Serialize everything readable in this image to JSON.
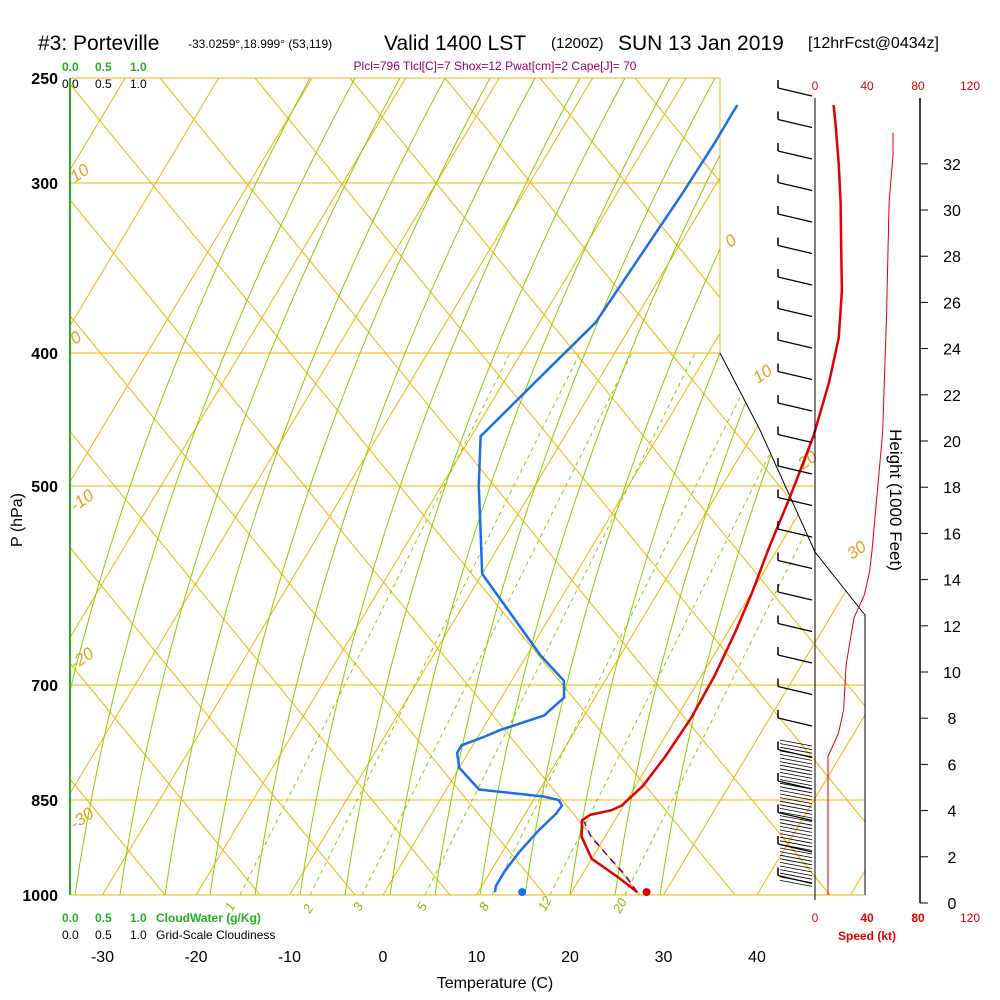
{
  "title": {
    "station": "#3: Porteville",
    "coords": "-33.0259°,18.999° (53,119)",
    "valid": "Valid 1400 LST",
    "utc": "(1200Z)",
    "date": "SUN 13 Jan 2019",
    "forecast": "[12hrFcst@0434z]",
    "indices": "Plcl=796 Tlcl[C]=7 Shox=12 Pwat[cm]=2 Cape[J]= 70"
  },
  "colors": {
    "isotherm": "#f0b400",
    "dry_adiabat": "#f0b400",
    "moist_adiabat": "#88cc00",
    "mixing_ratio": "#88cc00",
    "temperature": "#e00000",
    "dewpoint": "#1a6ee6",
    "parcel": "#660099",
    "cloud_axis": "#22b022",
    "speed": "#e00000"
  },
  "top_scales": {
    "cloudwater_ticks": [
      "0.0",
      "0.5",
      "1.0"
    ],
    "cloudiness_ticks": [
      "0.0",
      "0.5",
      "1.0"
    ]
  },
  "bottom_scales": {
    "cloudwater_ticks": [
      "0.0",
      "0.5",
      "1.0"
    ],
    "cloudwater_label": "CloudWater (g/Kg)",
    "cloudiness_ticks": [
      "0.0",
      "0.5",
      "1.0"
    ],
    "cloudiness_label": "Grid-Scale Cloudiness"
  },
  "axes": {
    "xlabel": "Temperature (C)",
    "ylabel": "P (hPa)",
    "height_label": "Height (1000 Feet)",
    "speed_label": "Speed (kt)",
    "speed_ticks": [
      "0",
      "40",
      "80",
      "120"
    ],
    "height_ticks": [
      "0",
      "2",
      "4",
      "6",
      "8",
      "10",
      "12",
      "14",
      "16",
      "18",
      "20",
      "22",
      "24",
      "26",
      "28",
      "30",
      "32"
    ]
  },
  "chart_data": {
    "type": "line",
    "xlim": [
      -35,
      35
    ],
    "ylim_hPa": [
      1000,
      250
    ],
    "x_ticks": [
      -30,
      -20,
      -10,
      0,
      10,
      20,
      30,
      40
    ],
    "pressure_levels": [
      250,
      300,
      400,
      500,
      700,
      850,
      1000
    ],
    "dry_adiabat_labels": [
      "0",
      "10",
      "20",
      "30",
      "10",
      "0",
      "-10",
      "-20",
      "-30"
    ],
    "mixing_ratio_labels": [
      "1",
      "2",
      "3",
      "5",
      "8",
      "12",
      "20"
    ],
    "series": [
      {
        "name": "Temperature",
        "points": [
          [
            27,
            995
          ],
          [
            24,
            970
          ],
          [
            20,
            940
          ],
          [
            17.5,
            905
          ],
          [
            16.5,
            880
          ],
          [
            17,
            872
          ],
          [
            19,
            865
          ],
          [
            19.8,
            858
          ],
          [
            20.8,
            830
          ],
          [
            21.3,
            790
          ],
          [
            21.6,
            740
          ],
          [
            21.4,
            690
          ],
          [
            20.8,
            640
          ],
          [
            20.1,
            600
          ],
          [
            19,
            555
          ],
          [
            18,
            510
          ],
          [
            16.6,
            460
          ],
          [
            14.8,
            420
          ],
          [
            13,
            390
          ],
          [
            10.3,
            360
          ],
          [
            7.5,
            335
          ],
          [
            4.5,
            310
          ],
          [
            1.8,
            290
          ],
          [
            -1.2,
            270
          ],
          [
            -2.5,
            262
          ]
        ]
      },
      {
        "name": "Dewpoint",
        "points": [
          [
            11.8,
            995
          ],
          [
            11.5,
            985
          ],
          [
            11.5,
            960
          ],
          [
            11.8,
            930
          ],
          [
            12.5,
            895
          ],
          [
            13.3,
            870
          ],
          [
            13.4,
            858
          ],
          [
            12.7,
            850
          ],
          [
            10.8,
            845
          ],
          [
            3.5,
            835
          ],
          [
            0,
            805
          ],
          [
            -1.2,
            785
          ],
          [
            -1.2,
            775
          ],
          [
            0.5,
            765
          ],
          [
            2,
            755
          ],
          [
            5.7,
            737
          ],
          [
            6.7,
            715
          ],
          [
            5.6,
            695
          ],
          [
            1.5,
            666
          ],
          [
            -10,
            580
          ],
          [
            -16,
            500
          ],
          [
            -19,
            460
          ],
          [
            -16,
            410
          ],
          [
            -14,
            380
          ],
          [
            -13.5,
            340
          ],
          [
            -13,
            305
          ],
          [
            -12.8,
            280
          ],
          [
            -12.8,
            262
          ]
        ]
      },
      {
        "name": "Parcel",
        "points": [
          [
            27,
            995
          ],
          [
            24.5,
            965
          ],
          [
            21.5,
            935
          ],
          [
            18.5,
            905
          ],
          [
            16.8,
            882
          ]
        ]
      }
    ],
    "surface_markers": [
      {
        "name": "Temperature",
        "x": 28,
        "p": 995
      },
      {
        "name": "Dewpoint",
        "x": 14.7,
        "p": 995
      }
    ],
    "height_ft_thousands": [
      0,
      32
    ],
    "speed_kt_range": [
      0,
      120
    ],
    "wind_speed_profile": [
      [
        0,
        10
      ],
      [
        2,
        10
      ],
      [
        4,
        10
      ],
      [
        6,
        10
      ],
      [
        7,
        18
      ],
      [
        8,
        22
      ],
      [
        10,
        24
      ],
      [
        12,
        30
      ],
      [
        13,
        38
      ],
      [
        14,
        42
      ],
      [
        15,
        44
      ],
      [
        20,
        52
      ],
      [
        25,
        55
      ],
      [
        30,
        57
      ],
      [
        32,
        60
      ],
      [
        33,
        60
      ]
    ]
  }
}
